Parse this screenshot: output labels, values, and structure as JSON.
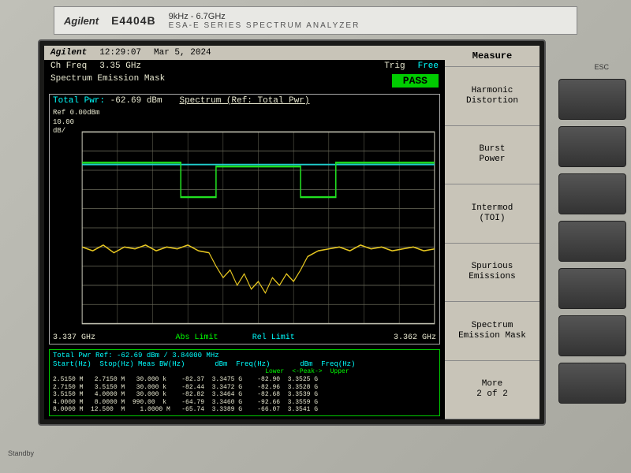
{
  "bezel": {
    "brand": "Agilent",
    "model": "E4404B",
    "range": "9kHz - 6.7GHz",
    "series": "ESA-E SERIES SPECTRUM ANALYZER",
    "esc": "ESC",
    "standby": "Standby"
  },
  "titlebar": {
    "brand": "Agilent",
    "time": "12:29:07",
    "date": "Mar 5, 2024"
  },
  "info": {
    "chfreq_label": "Ch Freq",
    "chfreq_val": "3.35 GHz",
    "trig_label": "Trig",
    "trig_val": "Free",
    "sem_label": "Spectrum Emission Mask",
    "pass": "PASS"
  },
  "graph": {
    "total_pwr_label": "Total Pwr:",
    "total_pwr_val": "-62.69 dBm",
    "title": "Spectrum (Ref: Total Pwr)",
    "ref_line1": "Ref 0.00dBm",
    "ref_line2": "10.00",
    "ref_line3": "dB/",
    "x_start": "3.337 GHz",
    "x_stop": "3.362 GHz",
    "abs_limit": "Abs Limit",
    "rel_limit": "Rel Limit",
    "grid_color": "#6a6a5a",
    "border_color": "#c0c0b0",
    "trace_color": "#e8c820",
    "mask_abs_color": "#20e020",
    "mask_rel_color": "#20d0d0",
    "background": "#000000",
    "ref_level": 0.0,
    "db_per_div": 10.0,
    "divisions_y": 10,
    "divisions_x": 10,
    "xlim": [
      3.337,
      3.362
    ],
    "mask_abs": {
      "x": [
        0,
        0.28,
        0.28,
        0.38,
        0.38,
        0.62,
        0.62,
        0.72,
        0.72,
        1.0
      ],
      "y": [
        0.16,
        0.16,
        0.34,
        0.34,
        0.18,
        0.18,
        0.34,
        0.34,
        0.16,
        0.16
      ]
    },
    "mask_rel": {
      "x": [
        0,
        1.0
      ],
      "y": [
        0.17,
        0.17
      ]
    },
    "trace": {
      "x": [
        0,
        0.03,
        0.06,
        0.09,
        0.12,
        0.15,
        0.18,
        0.21,
        0.24,
        0.27,
        0.3,
        0.33,
        0.36,
        0.38,
        0.4,
        0.42,
        0.44,
        0.46,
        0.48,
        0.5,
        0.52,
        0.54,
        0.56,
        0.58,
        0.6,
        0.62,
        0.64,
        0.67,
        0.7,
        0.73,
        0.76,
        0.79,
        0.82,
        0.85,
        0.88,
        0.91,
        0.94,
        0.97,
        1.0
      ],
      "y": [
        0.6,
        0.62,
        0.59,
        0.63,
        0.6,
        0.61,
        0.59,
        0.62,
        0.6,
        0.61,
        0.59,
        0.62,
        0.63,
        0.7,
        0.76,
        0.72,
        0.8,
        0.74,
        0.82,
        0.78,
        0.84,
        0.76,
        0.8,
        0.74,
        0.78,
        0.72,
        0.65,
        0.62,
        0.61,
        0.6,
        0.62,
        0.59,
        0.61,
        0.6,
        0.62,
        0.61,
        0.6,
        0.62,
        0.61
      ]
    }
  },
  "table": {
    "summary": "Total Pwr Ref:  -62.69 dBm / 3.84000 MHz",
    "hdr1": "Start(Hz)  Stop(Hz) Meas BW(Hz)       dBm  Freq(Hz)       dBm  Freq(Hz)",
    "peak_lower": "Lower",
    "peak_tag": "<-Peak->",
    "peak_upper": "Upper",
    "rows": [
      "2.5150 M   2.7150 M   30.000 k    -82.37  3.3475 G    -82.90  3.3525 G",
      "2.7150 M   3.5150 M   30.000 k    -82.44  3.3472 G    -82.96  3.3528 G",
      "3.5150 M   4.0000 M   30.000 k    -82.82  3.3464 G    -82.68  3.3539 G",
      "4.0000 M   8.0000 M  990.00  k    -64.79  3.3460 G    -92.66  3.3559 G",
      "8.0000 M  12.500  M    1.0000 M   -65.74  3.3389 G    -66.07  3.3541 G"
    ]
  },
  "softkeys": {
    "header": "Measure",
    "items": [
      "Harmonic\nDistortion",
      "Burst\nPower",
      "Intermod\n(TOI)",
      "Spurious\nEmissions",
      "Spectrum\nEmission Mask",
      "More\n2 of 2"
    ]
  }
}
